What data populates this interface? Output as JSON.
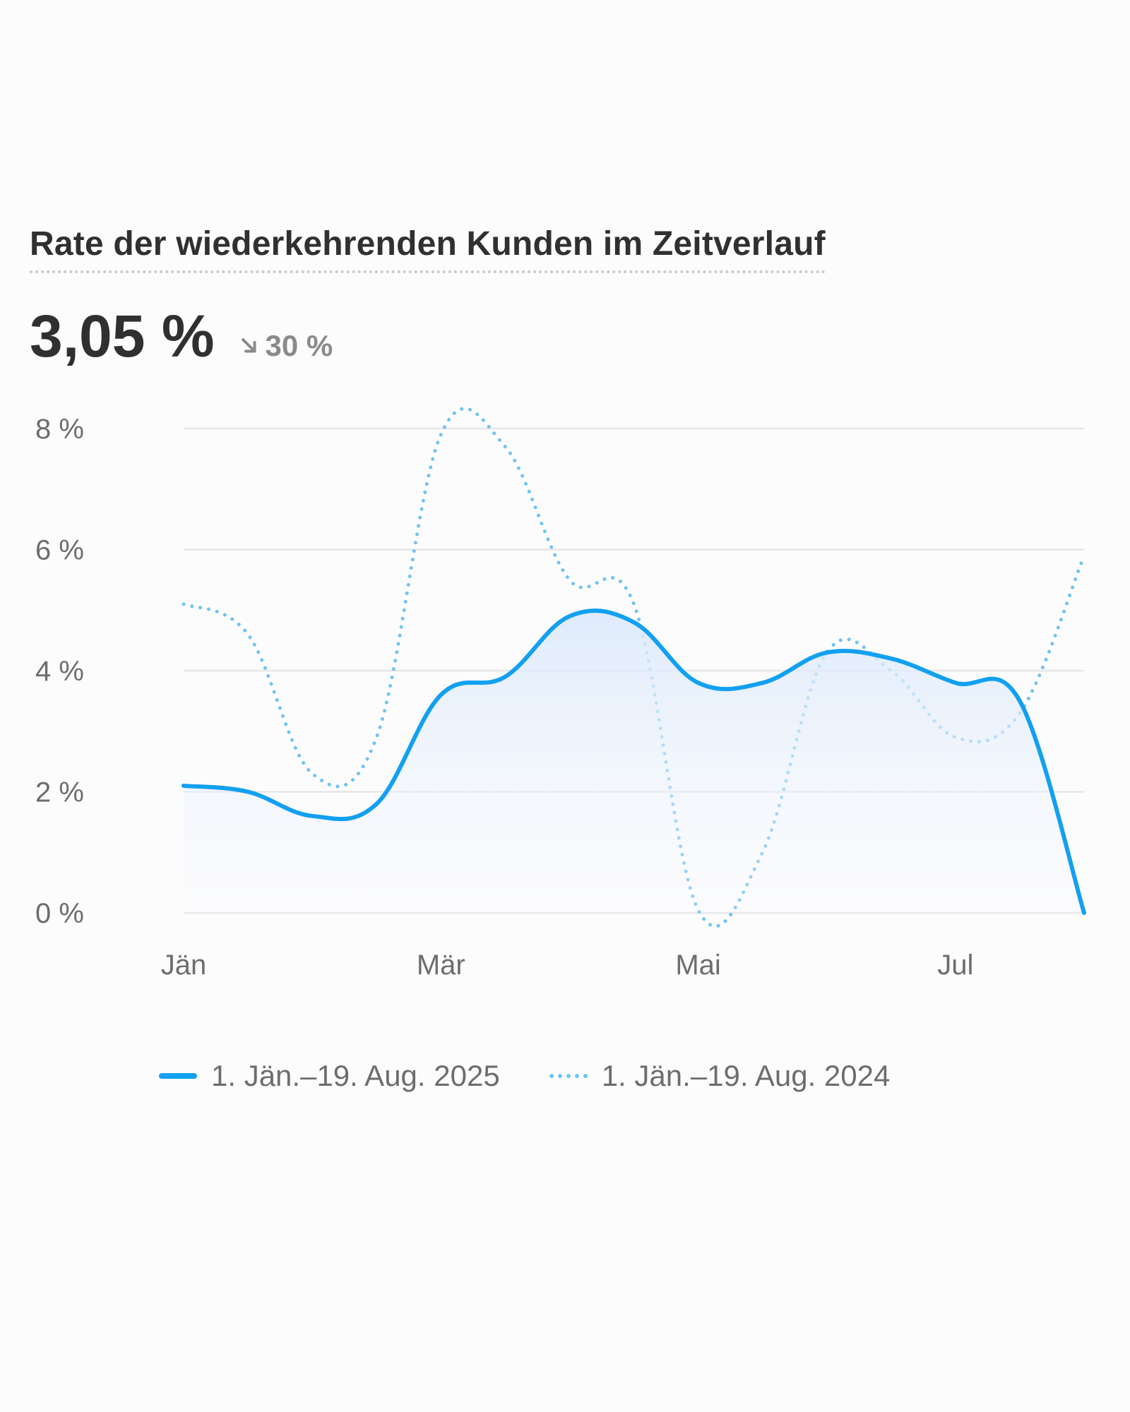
{
  "card": {
    "title": "Rate der wiederkehrenden Kunden im Zeitverlauf",
    "value": "3,05 %",
    "change": "30 %",
    "change_direction": "down",
    "change_icon": "arrow-down-right-icon"
  },
  "colors": {
    "current": "#12a0f0",
    "previous": "#6ec4f3",
    "grid": "#e6e6ea",
    "area_fill": "#e8f2fc"
  },
  "legend": {
    "current_label": "1. Jän.–19. Aug. 2025",
    "previous_label": "1. Jän.–19. Aug. 2024"
  },
  "chart_data": {
    "type": "line",
    "title": "Rate der wiederkehrenden Kunden im Zeitverlauf",
    "xlabel": "",
    "ylabel": "",
    "x_ticks": [
      "Jän",
      "Mär",
      "Mai",
      "Jul"
    ],
    "x_tick_months": [
      1,
      3,
      5,
      7
    ],
    "y_ticks": [
      "0 %",
      "2 %",
      "4 %",
      "6 %",
      "8 %"
    ],
    "y_tick_values": [
      0,
      2,
      4,
      6,
      8
    ],
    "ylim": [
      0,
      8
    ],
    "xlim": [
      1,
      8
    ],
    "grid": true,
    "legend_position": "bottom",
    "x": [
      1,
      1.5,
      2,
      2.5,
      3,
      3.5,
      4,
      4.5,
      5,
      5.5,
      6,
      6.5,
      7,
      7.5,
      8
    ],
    "series": [
      {
        "name": "1. Jän.–19. Aug. 2025",
        "style": "solid",
        "area": true,
        "values": [
          2.1,
          2.0,
          1.6,
          1.8,
          3.6,
          3.9,
          4.9,
          4.8,
          3.8,
          3.8,
          4.3,
          4.2,
          3.8,
          3.5,
          0.0
        ]
      },
      {
        "name": "1. Jän.–19. Aug. 2024",
        "style": "dotted",
        "area": false,
        "values": [
          5.1,
          4.6,
          2.3,
          2.9,
          7.9,
          7.7,
          5.5,
          5.1,
          0.05,
          1.0,
          4.3,
          4.0,
          2.9,
          3.3,
          5.9
        ]
      }
    ]
  }
}
